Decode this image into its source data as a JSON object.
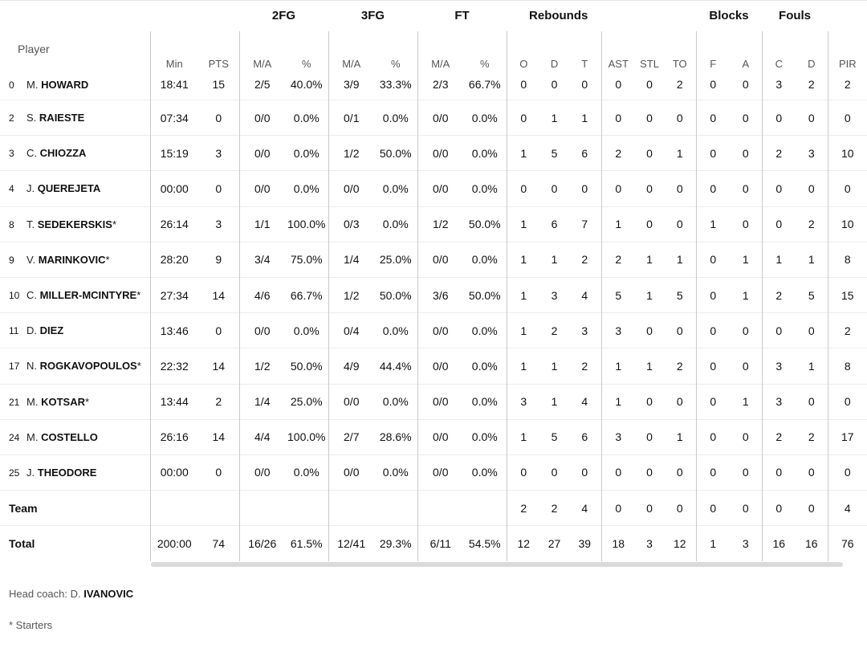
{
  "groups": {
    "fg2": "2FG",
    "fg3": "3FG",
    "ft": "FT",
    "rebounds": "Rebounds",
    "blocks": "Blocks",
    "fouls": "Fouls"
  },
  "headers": {
    "player": "Player",
    "min": "Min",
    "pts": "PTS",
    "fg2_ma": "M/A",
    "fg2_pct": "%",
    "fg3_ma": "M/A",
    "fg3_pct": "%",
    "ft_ma": "M/A",
    "ft_pct": "%",
    "reb_o": "O",
    "reb_d": "D",
    "reb_t": "T",
    "ast": "AST",
    "stl": "STL",
    "to": "TO",
    "blk_f": "F",
    "blk_a": "A",
    "foul_c": "C",
    "foul_d": "D",
    "pir": "PIR"
  },
  "players": [
    {
      "num": "0",
      "initial": "M.",
      "surname": "HOWARD",
      "starter": "",
      "min": "18:41",
      "pts": "15",
      "fg2_ma": "2/5",
      "fg2_pct": "40.0%",
      "fg3_ma": "3/9",
      "fg3_pct": "33.3%",
      "ft_ma": "2/3",
      "ft_pct": "66.7%",
      "reb_o": "0",
      "reb_d": "0",
      "reb_t": "0",
      "ast": "0",
      "stl": "0",
      "to": "2",
      "blk_f": "0",
      "blk_a": "0",
      "foul_c": "3",
      "foul_d": "2",
      "pir": "2"
    },
    {
      "num": "2",
      "initial": "S.",
      "surname": "RAIESTE",
      "starter": "",
      "min": "07:34",
      "pts": "0",
      "fg2_ma": "0/0",
      "fg2_pct": "0.0%",
      "fg3_ma": "0/1",
      "fg3_pct": "0.0%",
      "ft_ma": "0/0",
      "ft_pct": "0.0%",
      "reb_o": "0",
      "reb_d": "1",
      "reb_t": "1",
      "ast": "0",
      "stl": "0",
      "to": "0",
      "blk_f": "0",
      "blk_a": "0",
      "foul_c": "0",
      "foul_d": "0",
      "pir": "0"
    },
    {
      "num": "3",
      "initial": "C.",
      "surname": "CHIOZZA",
      "starter": "",
      "min": "15:19",
      "pts": "3",
      "fg2_ma": "0/0",
      "fg2_pct": "0.0%",
      "fg3_ma": "1/2",
      "fg3_pct": "50.0%",
      "ft_ma": "0/0",
      "ft_pct": "0.0%",
      "reb_o": "1",
      "reb_d": "5",
      "reb_t": "6",
      "ast": "2",
      "stl": "0",
      "to": "1",
      "blk_f": "0",
      "blk_a": "0",
      "foul_c": "2",
      "foul_d": "3",
      "pir": "10"
    },
    {
      "num": "4",
      "initial": "J.",
      "surname": "QUEREJETA",
      "starter": "",
      "min": "00:00",
      "pts": "0",
      "fg2_ma": "0/0",
      "fg2_pct": "0.0%",
      "fg3_ma": "0/0",
      "fg3_pct": "0.0%",
      "ft_ma": "0/0",
      "ft_pct": "0.0%",
      "reb_o": "0",
      "reb_d": "0",
      "reb_t": "0",
      "ast": "0",
      "stl": "0",
      "to": "0",
      "blk_f": "0",
      "blk_a": "0",
      "foul_c": "0",
      "foul_d": "0",
      "pir": "0"
    },
    {
      "num": "8",
      "initial": "T.",
      "surname": "SEDEKERSKIS",
      "starter": "*",
      "min": "26:14",
      "pts": "3",
      "fg2_ma": "1/1",
      "fg2_pct": "100.0%",
      "fg3_ma": "0/3",
      "fg3_pct": "0.0%",
      "ft_ma": "1/2",
      "ft_pct": "50.0%",
      "reb_o": "1",
      "reb_d": "6",
      "reb_t": "7",
      "ast": "1",
      "stl": "0",
      "to": "0",
      "blk_f": "1",
      "blk_a": "0",
      "foul_c": "0",
      "foul_d": "2",
      "pir": "10"
    },
    {
      "num": "9",
      "initial": "V.",
      "surname": "MARINKOVIC",
      "starter": "*",
      "min": "28:20",
      "pts": "9",
      "fg2_ma": "3/4",
      "fg2_pct": "75.0%",
      "fg3_ma": "1/4",
      "fg3_pct": "25.0%",
      "ft_ma": "0/0",
      "ft_pct": "0.0%",
      "reb_o": "1",
      "reb_d": "1",
      "reb_t": "2",
      "ast": "2",
      "stl": "1",
      "to": "1",
      "blk_f": "0",
      "blk_a": "1",
      "foul_c": "1",
      "foul_d": "1",
      "pir": "8"
    },
    {
      "num": "10",
      "initial": "C.",
      "surname": "MILLER-MCINTYRE",
      "starter": "*",
      "min": "27:34",
      "pts": "14",
      "fg2_ma": "4/6",
      "fg2_pct": "66.7%",
      "fg3_ma": "1/2",
      "fg3_pct": "50.0%",
      "ft_ma": "3/6",
      "ft_pct": "50.0%",
      "reb_o": "1",
      "reb_d": "3",
      "reb_t": "4",
      "ast": "5",
      "stl": "1",
      "to": "5",
      "blk_f": "0",
      "blk_a": "1",
      "foul_c": "2",
      "foul_d": "5",
      "pir": "15"
    },
    {
      "num": "11",
      "initial": "D.",
      "surname": "DIEZ",
      "starter": "",
      "min": "13:46",
      "pts": "0",
      "fg2_ma": "0/0",
      "fg2_pct": "0.0%",
      "fg3_ma": "0/4",
      "fg3_pct": "0.0%",
      "ft_ma": "0/0",
      "ft_pct": "0.0%",
      "reb_o": "1",
      "reb_d": "2",
      "reb_t": "3",
      "ast": "3",
      "stl": "0",
      "to": "0",
      "blk_f": "0",
      "blk_a": "0",
      "foul_c": "0",
      "foul_d": "0",
      "pir": "2"
    },
    {
      "num": "17",
      "initial": "N.",
      "surname": "ROGKAVOPOULOS",
      "starter": "*",
      "min": "22:32",
      "pts": "14",
      "fg2_ma": "1/2",
      "fg2_pct": "50.0%",
      "fg3_ma": "4/9",
      "fg3_pct": "44.4%",
      "ft_ma": "0/0",
      "ft_pct": "0.0%",
      "reb_o": "1",
      "reb_d": "1",
      "reb_t": "2",
      "ast": "1",
      "stl": "1",
      "to": "2",
      "blk_f": "0",
      "blk_a": "0",
      "foul_c": "3",
      "foul_d": "1",
      "pir": "8"
    },
    {
      "num": "21",
      "initial": "M.",
      "surname": "KOTSAR",
      "starter": "*",
      "min": "13:44",
      "pts": "2",
      "fg2_ma": "1/4",
      "fg2_pct": "25.0%",
      "fg3_ma": "0/0",
      "fg3_pct": "0.0%",
      "ft_ma": "0/0",
      "ft_pct": "0.0%",
      "reb_o": "3",
      "reb_d": "1",
      "reb_t": "4",
      "ast": "1",
      "stl": "0",
      "to": "0",
      "blk_f": "0",
      "blk_a": "1",
      "foul_c": "3",
      "foul_d": "0",
      "pir": "0"
    },
    {
      "num": "24",
      "initial": "M.",
      "surname": "COSTELLO",
      "starter": "",
      "min": "26:16",
      "pts": "14",
      "fg2_ma": "4/4",
      "fg2_pct": "100.0%",
      "fg3_ma": "2/7",
      "fg3_pct": "28.6%",
      "ft_ma": "0/0",
      "ft_pct": "0.0%",
      "reb_o": "1",
      "reb_d": "5",
      "reb_t": "6",
      "ast": "3",
      "stl": "0",
      "to": "1",
      "blk_f": "0",
      "blk_a": "0",
      "foul_c": "2",
      "foul_d": "2",
      "pir": "17"
    },
    {
      "num": "25",
      "initial": "J.",
      "surname": "THEODORE",
      "starter": "",
      "min": "00:00",
      "pts": "0",
      "fg2_ma": "0/0",
      "fg2_pct": "0.0%",
      "fg3_ma": "0/0",
      "fg3_pct": "0.0%",
      "ft_ma": "0/0",
      "ft_pct": "0.0%",
      "reb_o": "0",
      "reb_d": "0",
      "reb_t": "0",
      "ast": "0",
      "stl": "0",
      "to": "0",
      "blk_f": "0",
      "blk_a": "0",
      "foul_c": "0",
      "foul_d": "0",
      "pir": "0"
    }
  ],
  "team": {
    "label": "Team",
    "min": "",
    "pts": "",
    "fg2_ma": "",
    "fg2_pct": "",
    "fg3_ma": "",
    "fg3_pct": "",
    "ft_ma": "",
    "ft_pct": "",
    "reb_o": "2",
    "reb_d": "2",
    "reb_t": "4",
    "ast": "0",
    "stl": "0",
    "to": "0",
    "blk_f": "0",
    "blk_a": "0",
    "foul_c": "0",
    "foul_d": "0",
    "pir": "4"
  },
  "total": {
    "label": "Total",
    "min": "200:00",
    "pts": "74",
    "fg2_ma": "16/26",
    "fg2_pct": "61.5%",
    "fg3_ma": "12/41",
    "fg3_pct": "29.3%",
    "ft_ma": "6/11",
    "ft_pct": "54.5%",
    "reb_o": "12",
    "reb_d": "27",
    "reb_t": "39",
    "ast": "18",
    "stl": "3",
    "to": "12",
    "blk_f": "1",
    "blk_a": "3",
    "foul_c": "16",
    "foul_d": "16",
    "pir": "76"
  },
  "footer": {
    "coach_label": "Head coach:",
    "coach_initial": "D.",
    "coach_surname": "IVANOVIC",
    "starters_note": "* Starters"
  }
}
